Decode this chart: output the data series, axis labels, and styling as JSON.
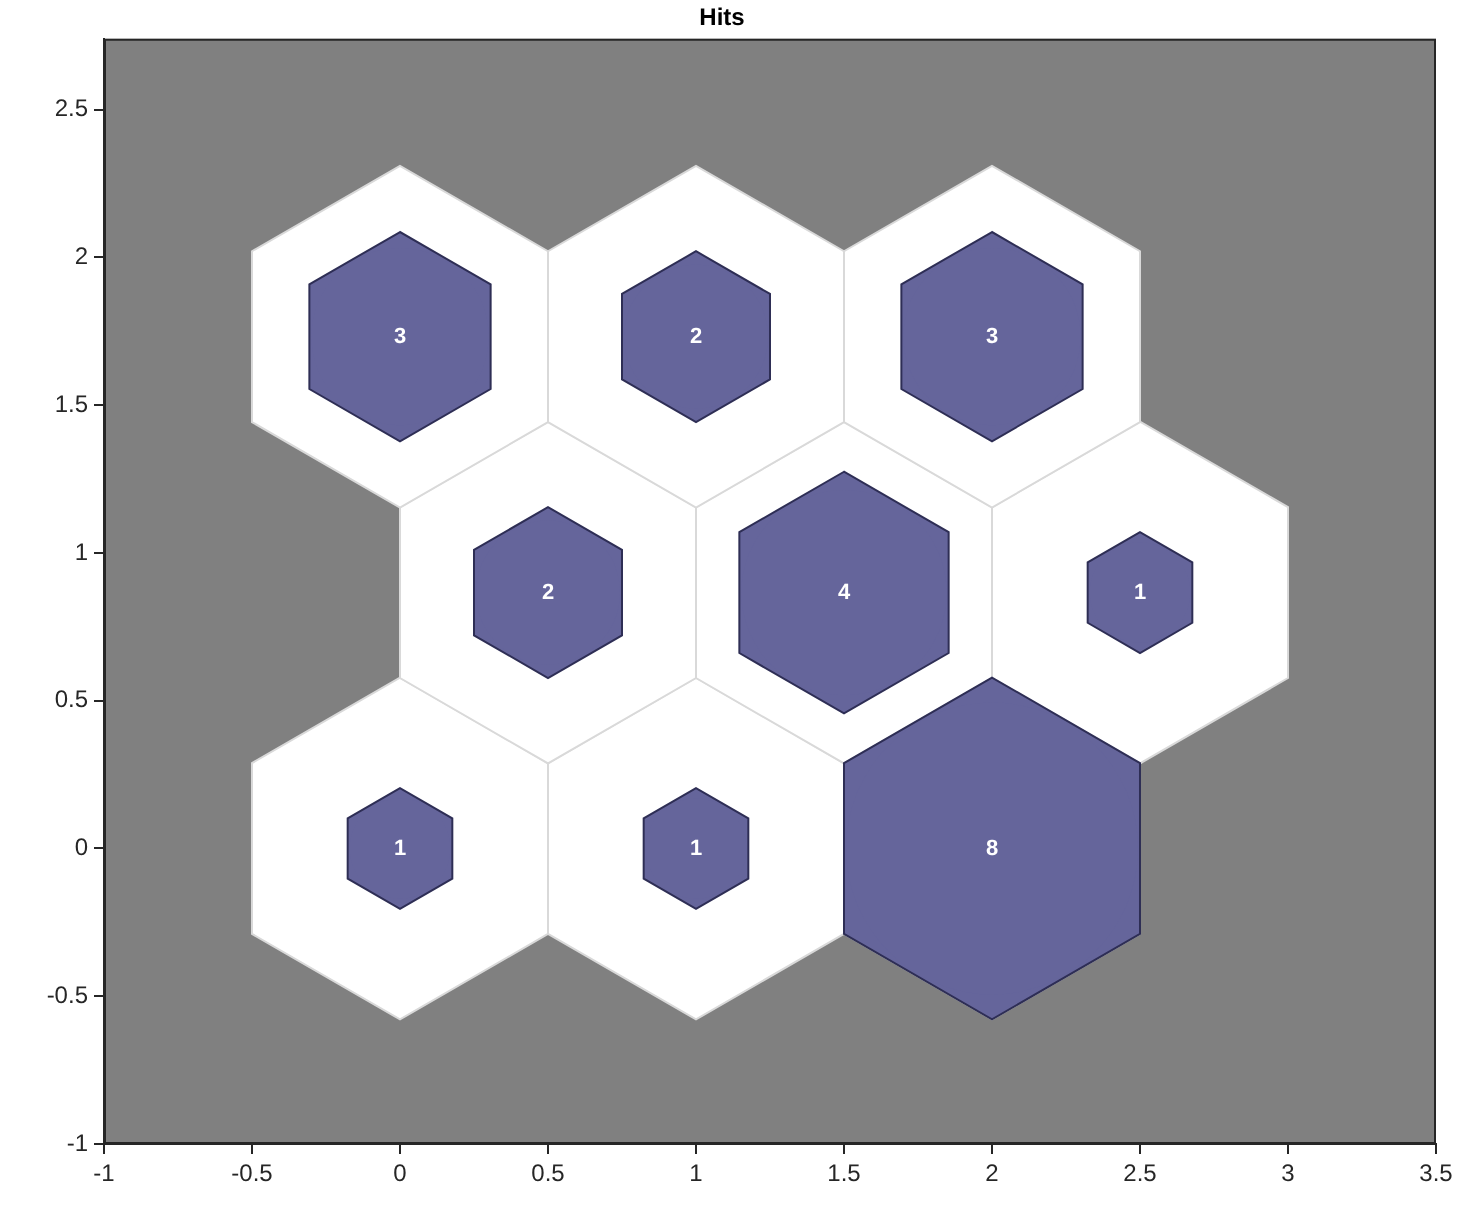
{
  "chart_data": {
    "type": "bubble",
    "title": "Hits",
    "x": [
      0,
      1,
      2,
      0.5,
      1.5,
      2.5,
      0,
      1,
      2
    ],
    "values": [
      0,
      0,
      0,
      0.866,
      0.866,
      0.866,
      1.732,
      1.732,
      1.732
    ],
    "sizes": [
      0.125,
      0.125,
      1,
      0.25,
      0.5,
      0.125,
      0.375,
      0.25,
      0.375
    ],
    "annotations": [
      {
        "text": "1",
        "x": 0,
        "y": 0
      },
      {
        "text": "1",
        "x": 1,
        "y": 0
      },
      {
        "text": "8",
        "x": 2,
        "y": 0
      },
      {
        "text": "2",
        "x": 0.5,
        "y": 0.866
      },
      {
        "text": "4",
        "x": 1.5,
        "y": 0.866
      },
      {
        "text": "1",
        "x": 2.5,
        "y": 0.866
      },
      {
        "text": "3",
        "x": 0,
        "y": 1.732
      },
      {
        "text": "2",
        "x": 1,
        "y": 1.732
      },
      {
        "text": "3",
        "x": 2,
        "y": 1.732
      }
    ],
    "color": "#65659b",
    "xlim": [
      -1,
      3.5
    ],
    "xticks": [
      -1,
      -0.5,
      0,
      0.5,
      1,
      1.5,
      2,
      2.5,
      3,
      3.5
    ],
    "ylim": [
      -1,
      2.74
    ],
    "yticks": [
      -1,
      -0.5,
      0,
      0.5,
      1,
      1.5,
      2,
      2.5
    ],
    "grid": false,
    "legend": false
  }
}
